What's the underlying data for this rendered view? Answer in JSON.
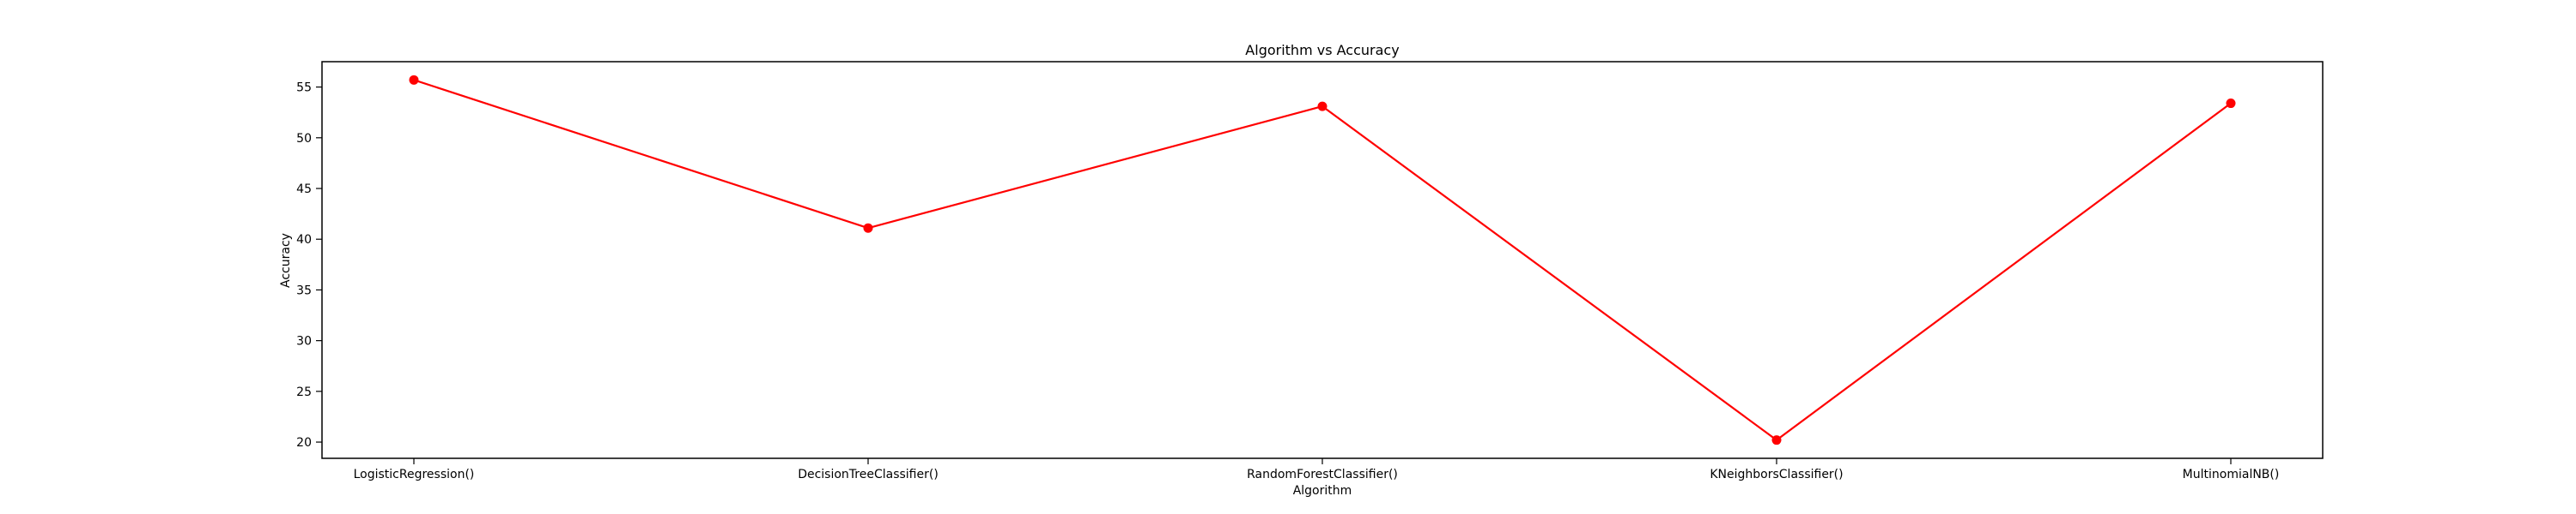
{
  "chart_data": {
    "type": "line",
    "title": "Algorithm vs Accuracy",
    "xlabel": "Algorithm",
    "ylabel": "Accuracy",
    "categories": [
      "LogisticRegression()",
      "DecisionTreeClassifier()",
      "RandomForestClassifier()",
      "KNeighborsClassifier()",
      "MultinomialNB()"
    ],
    "series": [
      {
        "values": [
          55.7,
          41.1,
          53.1,
          20.2,
          53.4
        ],
        "color": "#ff0000",
        "marker": "circle"
      }
    ],
    "yticks": [
      20,
      25,
      30,
      35,
      40,
      45,
      50,
      55
    ],
    "ylim": [
      18.4,
      57.5
    ],
    "grid": false,
    "legend": "none"
  }
}
